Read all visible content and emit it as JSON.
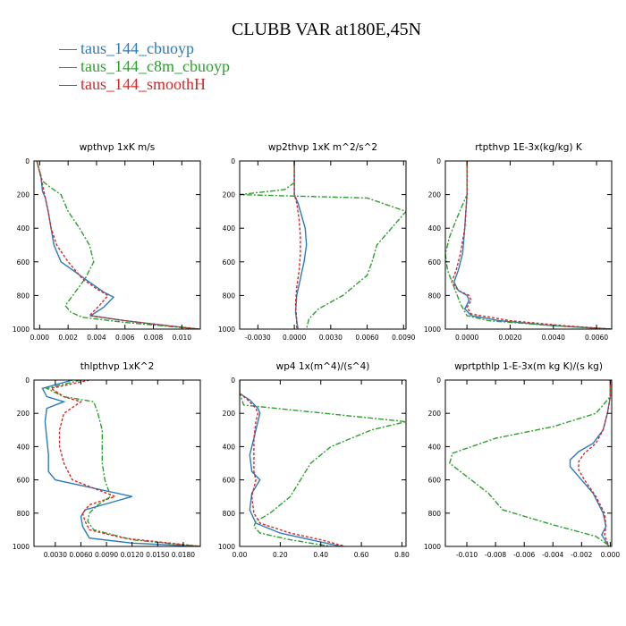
{
  "title": "CLUBB VAR at180E,45N",
  "colors": {
    "cbuoyp": "#2b7bba",
    "c8m_cbuoyp": "#2ca02c",
    "smoothH": "#d62728"
  },
  "legend": [
    {
      "label": "taus_144_cbuoyp",
      "color": "#2b7bba"
    },
    {
      "label": "taus_144_c8m_cbuoyp",
      "color": "#2ca02c"
    },
    {
      "label": "taus_144_smoothH",
      "color": "#d62728"
    }
  ],
  "chart_data": [
    {
      "type": "line",
      "title": "wpthvp  1xK m/s",
      "xlim": [
        -0.0004,
        0.0113
      ],
      "ylim": [
        1000,
        0
      ],
      "xticks": [
        0.0,
        0.002,
        0.004,
        0.006,
        0.008,
        0.01
      ],
      "xticklabels": [
        "0.000",
        "0.002",
        "0.004",
        "0.006",
        "0.008",
        "0.010"
      ],
      "yticks": [
        0,
        200,
        400,
        600,
        800,
        1000
      ],
      "yticklabels": [
        "0",
        "200",
        "400",
        "600",
        "800",
        "1000"
      ],
      "series": [
        {
          "name": "taus_144_cbuoyp",
          "x": [
            -0.0002,
            0.0001,
            0.0002,
            0.0004,
            0.0006,
            0.0008,
            0.001,
            0.0015,
            0.0025,
            0.0035,
            0.0045,
            0.0052,
            0.0045,
            0.0036,
            0.006,
            0.009,
            0.0112
          ],
          "y": [
            0,
            100,
            180,
            220,
            300,
            400,
            500,
            600,
            660,
            720,
            780,
            810,
            870,
            920,
            950,
            980,
            1000
          ]
        },
        {
          "name": "taus_144_c8m_cbuoyp",
          "x": [
            -0.0002,
            0.0002,
            0.0008,
            0.0015,
            0.002,
            0.0028,
            0.0035,
            0.0038,
            0.0032,
            0.0025,
            0.0018,
            0.0022,
            0.003,
            0.006,
            0.0112
          ],
          "y": [
            0,
            120,
            160,
            200,
            300,
            400,
            500,
            600,
            700,
            780,
            860,
            900,
            930,
            960,
            1000
          ]
        },
        {
          "name": "taus_144_smoothH",
          "x": [
            -0.0002,
            0.0001,
            0.0003,
            0.0004,
            0.0006,
            0.0008,
            0.0012,
            0.002,
            0.003,
            0.004,
            0.0048,
            0.0042,
            0.0035,
            0.006,
            0.009,
            0.0112
          ],
          "y": [
            0,
            100,
            180,
            220,
            300,
            400,
            500,
            600,
            700,
            760,
            800,
            860,
            920,
            950,
            980,
            1000
          ]
        }
      ]
    },
    {
      "type": "line",
      "title": "wp2thvp  1xK m^2/s^2",
      "xlim": [
        -0.0045,
        0.0092
      ],
      "ylim": [
        1000,
        0
      ],
      "xticks": [
        -0.003,
        0.0,
        0.003,
        0.006,
        0.009
      ],
      "xticklabels": [
        "-0.0030",
        "0.0000",
        "0.0030",
        "0.0060",
        "0.0090"
      ],
      "yticks": [
        0,
        200,
        400,
        600,
        800,
        1000
      ],
      "yticklabels": [
        "0",
        "200",
        "400",
        "600",
        "800",
        "1000"
      ],
      "series": [
        {
          "name": "taus_144_cbuoyp",
          "x": [
            0,
            0,
            0.0,
            0.0003,
            0.0007,
            0.0009,
            0.001,
            0.0008,
            0.0005,
            0.0002,
            0.0001,
            0.0002,
            0.0003
          ],
          "y": [
            0,
            150,
            200,
            250,
            350,
            400,
            500,
            600,
            700,
            800,
            900,
            950,
            1000
          ]
        },
        {
          "name": "taus_144_c8m_cbuoyp",
          "x": [
            0,
            0,
            -0.0008,
            -0.0045,
            0.006,
            0.0092,
            0.008,
            0.0068,
            0.0064,
            0.006,
            0.004,
            0.002,
            0.0012,
            0.001
          ],
          "y": [
            0,
            130,
            170,
            200,
            220,
            300,
            400,
            500,
            600,
            680,
            800,
            880,
            940,
            1000
          ]
        },
        {
          "name": "taus_144_smoothH",
          "x": [
            0,
            0,
            0.0,
            0.0002,
            0.0004,
            0.0005,
            0.0005,
            0.0004,
            0.0002,
            0.0001,
            0.0002,
            0.0002
          ],
          "y": [
            0,
            150,
            200,
            250,
            350,
            450,
            550,
            650,
            750,
            850,
            950,
            1000
          ]
        }
      ]
    },
    {
      "type": "line",
      "title": "rtpthvp  1E-3x(kg/kg) K",
      "xlim": [
        -0.001,
        0.0067
      ],
      "ylim": [
        1000,
        0
      ],
      "xticks": [
        0.0,
        0.002,
        0.004,
        0.006
      ],
      "xticklabels": [
        "0.0000",
        "0.0020",
        "0.0040",
        "0.0060"
      ],
      "yticks": [
        0,
        200,
        400,
        600,
        800,
        1000
      ],
      "yticklabels": [
        "0",
        "200",
        "400",
        "600",
        "800",
        "1000"
      ],
      "series": [
        {
          "name": "taus_144_cbuoyp",
          "x": [
            0,
            0,
            -0.0001,
            -0.0002,
            -0.0004,
            -0.0006,
            -0.0004,
            0.0,
            0.0001,
            -0.0001,
            0.0002,
            0.0015,
            0.004,
            0.0067
          ],
          "y": [
            0,
            200,
            400,
            550,
            650,
            720,
            770,
            800,
            830,
            880,
            920,
            950,
            980,
            1000
          ]
        },
        {
          "name": "taus_144_c8m_cbuoyp",
          "x": [
            0,
            0,
            -0.0002,
            -0.0005,
            -0.0008,
            -0.001,
            -0.0009,
            -0.0006,
            -0.0003,
            0.0,
            0.001,
            0.004,
            0.0067
          ],
          "y": [
            0,
            200,
            260,
            350,
            450,
            550,
            650,
            750,
            850,
            920,
            950,
            980,
            1000
          ]
        },
        {
          "name": "taus_144_smoothH",
          "x": [
            0,
            0,
            -0.0001,
            -0.0003,
            -0.0005,
            -0.0007,
            -0.0004,
            0.0001,
            0.0002,
            0.0,
            0.0002,
            0.002,
            0.0045,
            0.0067
          ],
          "y": [
            0,
            200,
            400,
            550,
            650,
            720,
            770,
            800,
            830,
            870,
            910,
            950,
            980,
            1000
          ]
        }
      ]
    },
    {
      "type": "line",
      "title": "thlpthvp  1xK^2",
      "xlim": [
        0.0005,
        0.02
      ],
      "ylim": [
        1000,
        0
      ],
      "xticks": [
        0.003,
        0.006,
        0.009,
        0.012,
        0.015,
        0.018
      ],
      "xticklabels": [
        "0.0030",
        "0.0060",
        "0.0090",
        "0.0120",
        "0.0150",
        "0.0180"
      ],
      "yticks": [
        0,
        200,
        400,
        600,
        800,
        1000
      ],
      "yticklabels": [
        "0",
        "200",
        "400",
        "600",
        "800",
        "1000"
      ],
      "series": [
        {
          "name": "taus_144_cbuoyp",
          "x": [
            0.005,
            0.0015,
            0.002,
            0.004,
            0.002,
            0.0018,
            0.002,
            0.0022,
            0.0022,
            0.003,
            0.012,
            0.0065,
            0.006,
            0.0062,
            0.007,
            0.012,
            0.02
          ],
          "y": [
            0,
            50,
            100,
            130,
            170,
            250,
            350,
            450,
            550,
            600,
            700,
            780,
            820,
            880,
            950,
            980,
            1000
          ]
        },
        {
          "name": "taus_144_c8m_cbuoyp",
          "x": [
            0.006,
            0.002,
            0.004,
            0.0075,
            0.008,
            0.0085,
            0.0085,
            0.0085,
            0.0088,
            0.0095,
            0.008,
            0.007,
            0.0068,
            0.0075,
            0.012,
            0.02
          ],
          "y": [
            0,
            50,
            100,
            130,
            200,
            300,
            400,
            500,
            600,
            700,
            750,
            800,
            850,
            900,
            960,
            1000
          ]
        },
        {
          "name": "taus_144_smoothH",
          "x": [
            0.007,
            0.0025,
            0.004,
            0.006,
            0.004,
            0.0035,
            0.0035,
            0.004,
            0.005,
            0.01,
            0.007,
            0.0062,
            0.0065,
            0.007,
            0.011,
            0.02
          ],
          "y": [
            0,
            50,
            100,
            130,
            200,
            300,
            400,
            500,
            600,
            700,
            750,
            800,
            850,
            900,
            950,
            1000
          ]
        }
      ]
    },
    {
      "type": "line",
      "title": "wp4  1x(m^4)/(s^4)",
      "xlim": [
        0.0,
        0.82
      ],
      "ylim": [
        1000,
        0
      ],
      "xticks": [
        0.0,
        0.2,
        0.4,
        0.6,
        0.8
      ],
      "xticklabels": [
        "0.00",
        "0.20",
        "0.40",
        "0.60",
        "0.80"
      ],
      "yticks": [
        0,
        200,
        400,
        600,
        800,
        1000
      ],
      "yticklabels": [
        "0",
        "200",
        "400",
        "600",
        "800",
        "1000"
      ],
      "series": [
        {
          "name": "taus_144_cbuoyp",
          "x": [
            0.0,
            0.0,
            0.05,
            0.09,
            0.1,
            0.09,
            0.07,
            0.05,
            0.06,
            0.1,
            0.06,
            0.05,
            0.08,
            0.2,
            0.35,
            0.5
          ],
          "y": [
            0,
            80,
            120,
            170,
            200,
            250,
            350,
            450,
            550,
            600,
            680,
            780,
            860,
            920,
            960,
            1000
          ]
        },
        {
          "name": "taus_144_c8m_cbuoyp",
          "x": [
            0.0,
            0.0,
            0.02,
            0.82,
            0.65,
            0.45,
            0.35,
            0.3,
            0.25,
            0.15,
            0.08,
            0.07,
            0.1,
            0.25,
            0.45
          ],
          "y": [
            0,
            80,
            150,
            250,
            300,
            400,
            500,
            600,
            700,
            800,
            850,
            880,
            920,
            960,
            1000
          ]
        },
        {
          "name": "taus_144_smoothH",
          "x": [
            0.0,
            0.0,
            0.04,
            0.08,
            0.09,
            0.08,
            0.07,
            0.07,
            0.07,
            0.08,
            0.06,
            0.07,
            0.1,
            0.25,
            0.4,
            0.52
          ],
          "y": [
            0,
            80,
            120,
            170,
            200,
            250,
            350,
            450,
            550,
            600,
            700,
            800,
            860,
            920,
            960,
            1000
          ]
        }
      ]
    },
    {
      "type": "line",
      "title": "wprtpthlp  1-E-3x(m kg K)/(s kg)",
      "xlim": [
        -0.0115,
        0.0001
      ],
      "ylim": [
        1000,
        0
      ],
      "xticks": [
        -0.01,
        -0.008,
        -0.006,
        -0.004,
        -0.002,
        0.0
      ],
      "xticklabels": [
        "-0.010",
        "-0.008",
        "-0.006",
        "-0.004",
        "-0.002",
        "0.000"
      ],
      "yticks": [
        0,
        200,
        400,
        600,
        800,
        1000
      ],
      "yticklabels": [
        "0",
        "200",
        "400",
        "600",
        "800",
        "1000"
      ],
      "series": [
        {
          "name": "taus_144_cbuoyp",
          "x": [
            0,
            0,
            -0.0002,
            -0.0005,
            -0.0012,
            -0.0022,
            -0.0028,
            -0.0028,
            -0.0022,
            -0.0012,
            -0.0005,
            -0.0003,
            -0.0006,
            -0.0001
          ],
          "y": [
            0,
            100,
            200,
            300,
            380,
            430,
            480,
            520,
            580,
            680,
            800,
            880,
            930,
            1000
          ]
        },
        {
          "name": "taus_144_c8m_cbuoyp",
          "x": [
            0,
            0,
            -0.001,
            -0.004,
            -0.008,
            -0.011,
            -0.0112,
            -0.01,
            -0.0085,
            -0.0075,
            -0.004,
            -0.001,
            0.0
          ],
          "y": [
            0,
            100,
            200,
            280,
            350,
            440,
            500,
            580,
            680,
            780,
            870,
            940,
            1000
          ]
        },
        {
          "name": "taus_144_smoothH",
          "x": [
            0,
            0,
            -0.0002,
            -0.0005,
            -0.001,
            -0.0018,
            -0.0022,
            -0.0022,
            -0.0018,
            -0.001,
            -0.0004,
            -0.0003,
            -0.0004,
            -0.0001
          ],
          "y": [
            0,
            100,
            200,
            300,
            380,
            440,
            490,
            540,
            600,
            700,
            800,
            880,
            930,
            1000
          ]
        }
      ]
    }
  ]
}
